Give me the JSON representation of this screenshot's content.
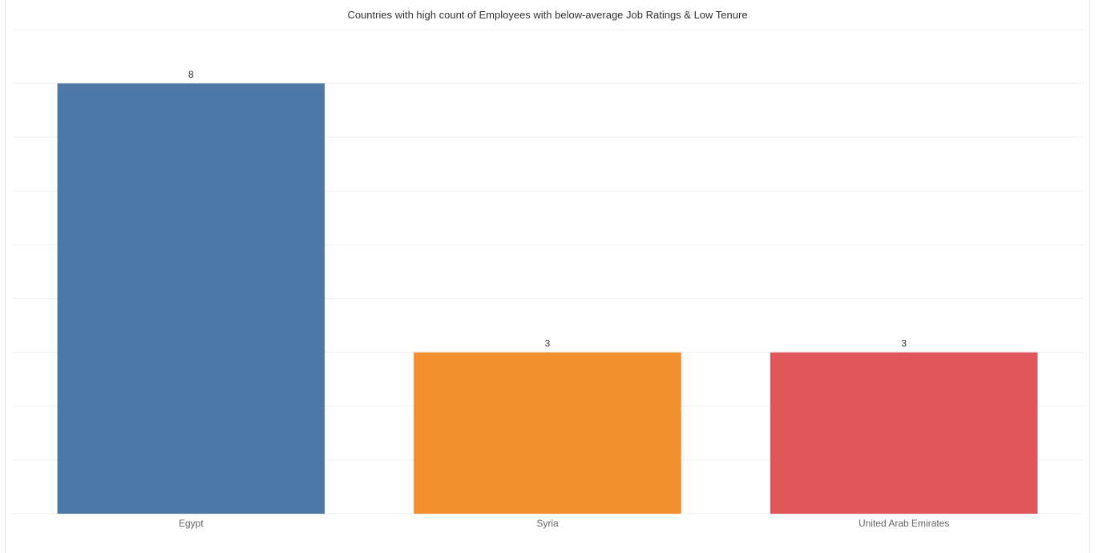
{
  "chart_data": {
    "type": "bar",
    "title": "Countries with high count of Employees with below-average Job Ratings & Low Tenure",
    "categories": [
      "Egypt",
      "Syria",
      "United Arab Emirates"
    ],
    "values": [
      8,
      3,
      3
    ],
    "data_labels": [
      "8",
      "3",
      "3"
    ],
    "colors": [
      "#4e79a7",
      "#f28e2b",
      "#e15759"
    ],
    "ylim": [
      0,
      9
    ],
    "grid": true,
    "xlabel": "",
    "ylabel": ""
  }
}
